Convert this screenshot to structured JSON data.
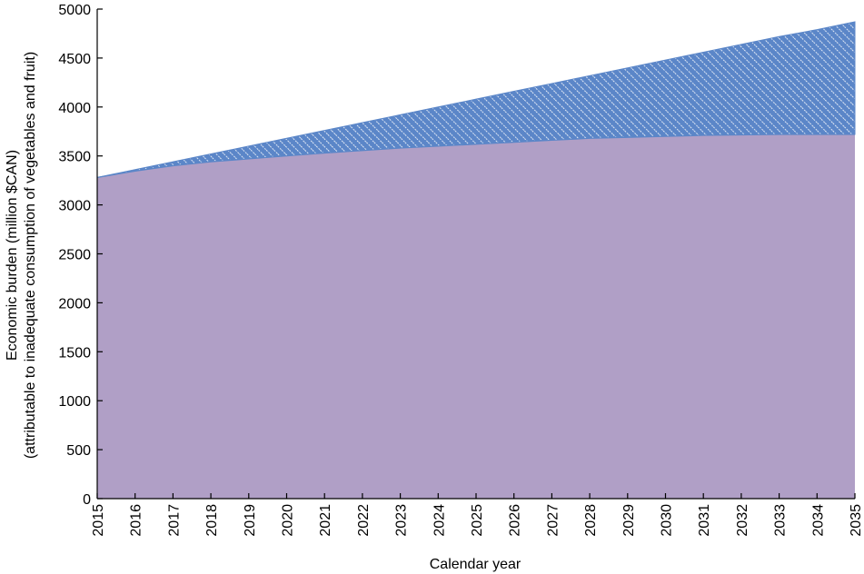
{
  "chart_data": {
    "type": "area",
    "title": "",
    "xlabel": "Calendar year",
    "ylabel": {
      "line1": "Economic burden (million $CAN)",
      "line2": "(attributable to inadequate consumption of vegetables and fruit)"
    },
    "x": [
      2015,
      2016,
      2017,
      2018,
      2019,
      2020,
      2021,
      2022,
      2023,
      2024,
      2025,
      2026,
      2027,
      2028,
      2029,
      2030,
      2031,
      2032,
      2033,
      2034,
      2035
    ],
    "xlim": [
      2015,
      2035
    ],
    "ylim": [
      0,
      5000
    ],
    "yticks": [
      0,
      500,
      1000,
      1500,
      2000,
      2500,
      3000,
      3500,
      4000,
      4500,
      5000
    ],
    "grid": false,
    "legend": "none",
    "series": [
      {
        "values": [
          3280,
          3345,
          3400,
          3440,
          3470,
          3500,
          3530,
          3555,
          3580,
          3600,
          3620,
          3640,
          3660,
          3680,
          3690,
          3700,
          3710,
          3715,
          3720,
          3720,
          3720
        ],
        "fill": "#b09fc6",
        "style": "solid"
      },
      {
        "values": [
          3280,
          3360,
          3440,
          3520,
          3600,
          3680,
          3760,
          3840,
          3920,
          4000,
          4080,
          4160,
          4240,
          4320,
          4400,
          4480,
          4560,
          4640,
          4720,
          4790,
          4870
        ],
        "fill": "#5b86c8",
        "hatch": "#ffffff",
        "style": "hatched"
      }
    ]
  }
}
